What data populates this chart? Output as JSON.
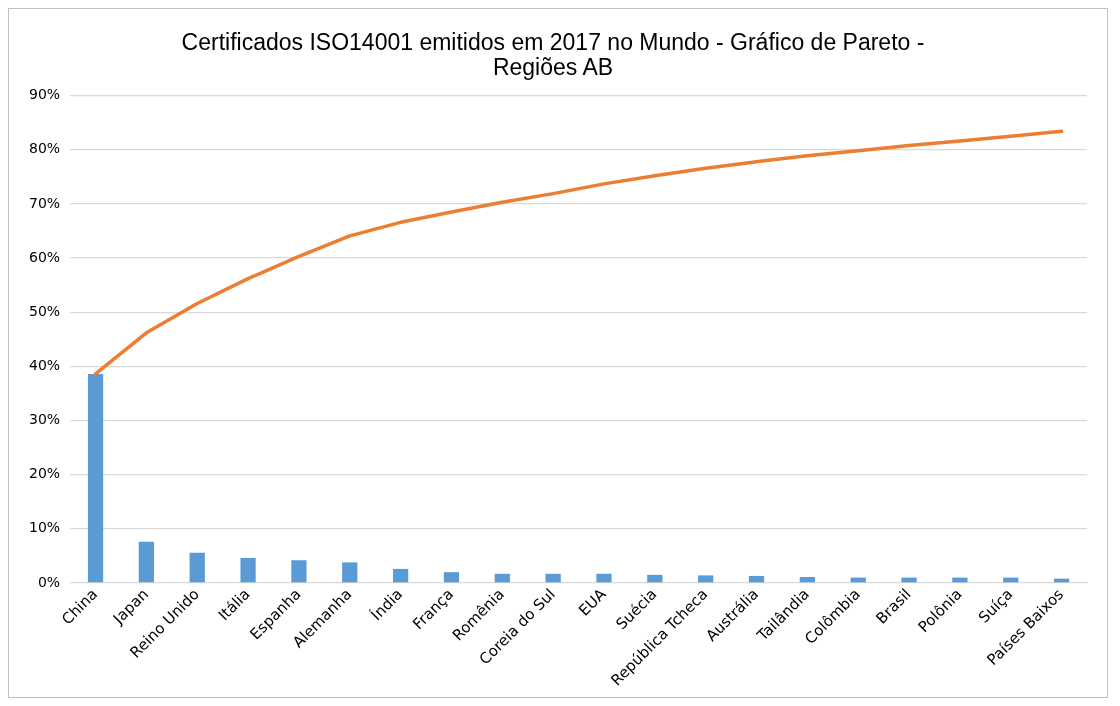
{
  "chart_data": {
    "type": "bar",
    "title": "Certificados ISO14001 emitidos em 2017 no Mundo - Gráfico de Pareto - Regiões AB",
    "categories": [
      "China",
      "Japan",
      "Reino Unido",
      "Itália",
      "Espanha",
      "Alemanha",
      "Índia",
      "França",
      "Romênia",
      "Coreia do Sul",
      "EUA",
      "Suécia",
      "República Tcheca",
      "Austrália",
      "Tailândia",
      "Colômbia",
      "Brasil",
      "Polônia",
      "Suíça",
      "Países Baixos"
    ],
    "series": [
      {
        "color": "#5b9bd5",
        "values": [
          38.6,
          7.6,
          5.6,
          4.6,
          4.2,
          3.8,
          2.6,
          2.0,
          1.7,
          1.7,
          1.7,
          1.5,
          1.4,
          1.3,
          1.1,
          1.0,
          1.0,
          1.0,
          1.0,
          0.8
        ]
      },
      {
        "type": "line",
        "color": "#ed7d31",
        "values": [
          38.6,
          46.2,
          51.6,
          56.2,
          60.3,
          64.1,
          66.6,
          68.5,
          70.3,
          71.9,
          73.7,
          75.2,
          76.6,
          77.8,
          78.9,
          79.8,
          80.8,
          81.6,
          82.5,
          83.4
        ]
      }
    ],
    "ylim": [
      0,
      90
    ],
    "yticks": [
      {
        "value": 0,
        "label": "0%"
      },
      {
        "value": 10,
        "label": "10%"
      },
      {
        "value": 20,
        "label": "20%"
      },
      {
        "value": 30,
        "label": "30%"
      },
      {
        "value": 40,
        "label": "40%"
      },
      {
        "value": 50,
        "label": "50%"
      },
      {
        "value": 60,
        "label": "60%"
      },
      {
        "value": 70,
        "label": "70%"
      },
      {
        "value": 80,
        "label": "80%"
      },
      {
        "value": 90,
        "label": "90%"
      }
    ],
    "grid": "y",
    "legend": false,
    "marker": "none"
  }
}
